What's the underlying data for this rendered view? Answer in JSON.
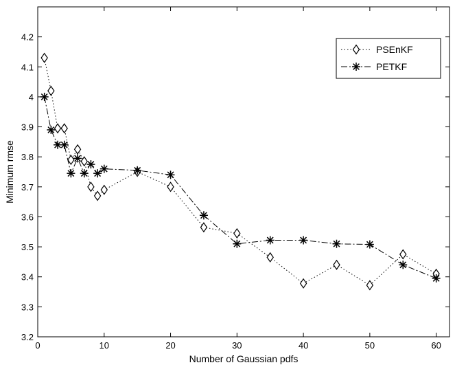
{
  "chart_data": {
    "type": "line",
    "title": "",
    "xlabel": "Number of Gaussian pdfs",
    "ylabel": "Minimum rmse",
    "xlim": [
      0,
      62
    ],
    "ylim": [
      3.2,
      4.3
    ],
    "xticks": [
      0,
      10,
      20,
      30,
      40,
      50,
      60
    ],
    "yticks": [
      3.2,
      3.3,
      3.4,
      3.5,
      3.6,
      3.7,
      3.8,
      3.9,
      4,
      4.1,
      4.2
    ],
    "ytick_labels": [
      "3.2",
      "3.3",
      "3.4",
      "3.5",
      "3.6",
      "3.7",
      "3.8",
      "3.9",
      "4",
      "4.1",
      "4.2"
    ],
    "grid": false,
    "legend_position": "top-right",
    "x": [
      1,
      2,
      3,
      4,
      5,
      6,
      7,
      8,
      9,
      10,
      15,
      20,
      25,
      30,
      35,
      40,
      45,
      50,
      55,
      60
    ],
    "series": [
      {
        "name": "PSEnKF",
        "marker": "diamond",
        "linestyle": "dotted",
        "values": [
          4.13,
          4.02,
          3.895,
          3.895,
          3.79,
          3.825,
          3.785,
          3.7,
          3.67,
          3.69,
          3.75,
          3.7,
          3.565,
          3.545,
          3.465,
          3.378,
          3.44,
          3.372,
          3.475,
          3.41
        ]
      },
      {
        "name": "PETKF",
        "marker": "asterisk",
        "linestyle": "dashdot",
        "values": [
          4.0,
          3.89,
          3.84,
          3.84,
          3.745,
          3.795,
          3.745,
          3.775,
          3.745,
          3.76,
          3.755,
          3.74,
          3.605,
          3.51,
          3.522,
          3.522,
          3.51,
          3.508,
          3.44,
          3.395
        ]
      }
    ]
  }
}
